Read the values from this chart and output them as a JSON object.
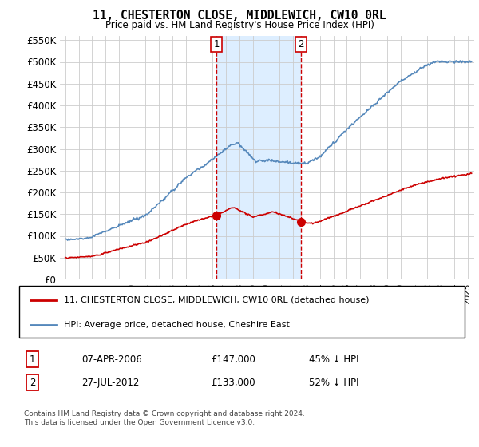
{
  "title": "11, CHESTERTON CLOSE, MIDDLEWICH, CW10 0RL",
  "subtitle": "Price paid vs. HM Land Registry's House Price Index (HPI)",
  "legend_label_red": "11, CHESTERTON CLOSE, MIDDLEWICH, CW10 0RL (detached house)",
  "legend_label_blue": "HPI: Average price, detached house, Cheshire East",
  "footnote": "Contains HM Land Registry data © Crown copyright and database right 2024.\nThis data is licensed under the Open Government Licence v3.0.",
  "transaction_1_date": "07-APR-2006",
  "transaction_1_price": "£147,000",
  "transaction_1_hpi": "45% ↓ HPI",
  "transaction_1_x": 2006.27,
  "transaction_1_y": 147000,
  "transaction_2_date": "27-JUL-2012",
  "transaction_2_price": "£133,000",
  "transaction_2_hpi": "52% ↓ HPI",
  "transaction_2_x": 2012.57,
  "transaction_2_y": 133000,
  "red_color": "#cc0000",
  "blue_color": "#5588bb",
  "blue_fill_color": "#ddeeff",
  "grid_color": "#cccccc",
  "ylim": [
    0,
    560000
  ],
  "yticks": [
    0,
    50000,
    100000,
    150000,
    200000,
    250000,
    300000,
    350000,
    400000,
    450000,
    500000,
    550000
  ],
  "xlim_start": 1994.6,
  "xlim_end": 2025.5
}
